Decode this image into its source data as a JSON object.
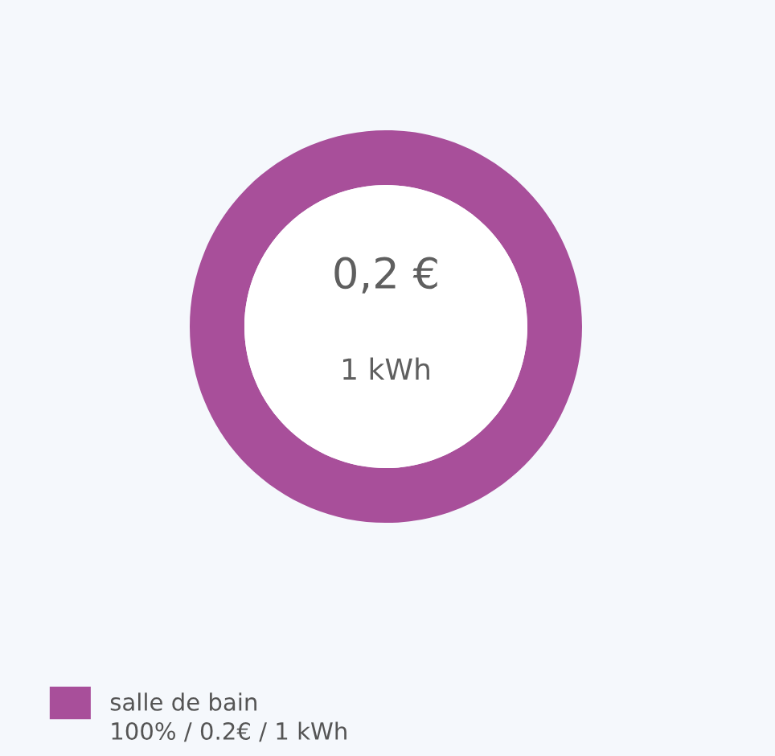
{
  "chart_data": {
    "type": "donut",
    "categories": [
      "salle de bain"
    ],
    "values": [
      100
    ],
    "colors": [
      "#a84f9a"
    ],
    "value_labels": [
      "100% / 0.2€ / 1 kWh"
    ],
    "annotations": [
      "0,2 €",
      "1 kWh"
    ],
    "legend": "bottom left"
  }
}
